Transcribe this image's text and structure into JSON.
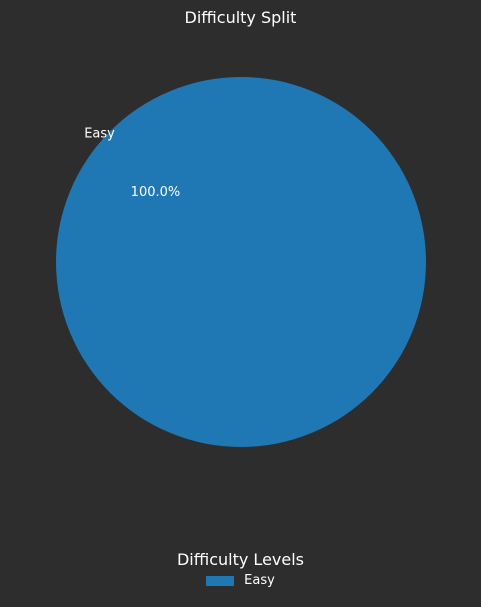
{
  "chart_data": {
    "type": "pie",
    "title": "Difficulty Split",
    "slices": [
      {
        "label": "Easy",
        "value": 100.0,
        "pct_label": "100.0%",
        "color": "#1f77b4"
      }
    ],
    "legend": {
      "title": "Difficulty Levels",
      "placement": "bottom-center",
      "entries": [
        "Easy"
      ]
    },
    "background": "#2d2d2d",
    "text_color": "#ffffff"
  }
}
